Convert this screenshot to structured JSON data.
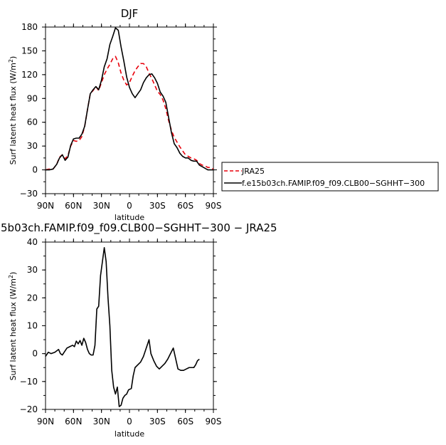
{
  "chart_data": [
    {
      "type": "line",
      "title": "DJF",
      "xlabel": "latitude",
      "ylabel_main": "Surf latent heat flux (W/m",
      "ylabel_sup": "2",
      "ylabel_tail": ")",
      "xlim": [
        90,
        -90
      ],
      "ylim": [
        -30,
        180
      ],
      "x_ticks": [
        90,
        60,
        30,
        0,
        -30,
        -60,
        -90
      ],
      "x_tick_labels": [
        "90N",
        "60N",
        "30N",
        "0",
        "30S",
        "60S",
        "90S"
      ],
      "y_ticks": [
        -30,
        0,
        30,
        60,
        90,
        120,
        150,
        180
      ],
      "y_tick_labels": [
        "−30",
        "0",
        "30",
        "60",
        "90",
        "120",
        "150",
        "180"
      ],
      "legend": {
        "placement": "right",
        "entries": [
          "JRA25",
          "f.e15b03ch.FAMIP.f09_f09.CLB00−SGHHT−300"
        ]
      },
      "series": [
        {
          "name": "JRA25",
          "color": "#e8000b",
          "dash": "dashed",
          "points": [
            [
              90,
              0
            ],
            [
              86,
              1
            ],
            [
              82,
              1
            ],
            [
              78,
              7
            ],
            [
              75,
              16
            ],
            [
              72,
              19
            ],
            [
              69,
              14
            ],
            [
              66,
              18
            ],
            [
              63,
              30
            ],
            [
              60,
              37
            ],
            [
              57,
              36
            ],
            [
              54,
              37
            ],
            [
              51,
              42
            ],
            [
              48,
              55
            ],
            [
              45,
              76
            ],
            [
              42,
              96
            ],
            [
              39,
              100
            ],
            [
              36,
              105
            ],
            [
              33,
              100
            ],
            [
              30,
              110
            ],
            [
              27,
              120
            ],
            [
              24,
              127
            ],
            [
              21,
              133
            ],
            [
              18,
              140
            ],
            [
              15,
              143
            ],
            [
              12,
              135
            ],
            [
              9,
              122
            ],
            [
              6,
              113
            ],
            [
              3,
              107
            ],
            [
              0,
              110
            ],
            [
              -3,
              118
            ],
            [
              -6,
              125
            ],
            [
              -9,
              130
            ],
            [
              -12,
              134
            ],
            [
              -15,
              134
            ],
            [
              -18,
              130
            ],
            [
              -21,
              122
            ],
            [
              -24,
              115
            ],
            [
              -27,
              107
            ],
            [
              -30,
              99
            ],
            [
              -33,
              95
            ],
            [
              -36,
              88
            ],
            [
              -39,
              77
            ],
            [
              -42,
              62
            ],
            [
              -45,
              50
            ],
            [
              -48,
              41
            ],
            [
              -51,
              35
            ],
            [
              -54,
              29
            ],
            [
              -57,
              24
            ],
            [
              -60,
              19
            ],
            [
              -63,
              17
            ],
            [
              -66,
              15
            ],
            [
              -69,
              14
            ],
            [
              -72,
              12
            ],
            [
              -75,
              8
            ],
            [
              -78,
              6
            ],
            [
              -81,
              5
            ],
            [
              -84,
              3
            ],
            [
              -87,
              3
            ],
            [
              -90,
              1
            ]
          ]
        },
        {
          "name": "f.e15b03ch.FAMIP.f09_f09.CLB00−SGHHT−300",
          "color": "#000000",
          "dash": "solid",
          "points": [
            [
              90,
              0
            ],
            [
              86,
              0
            ],
            [
              82,
              1
            ],
            [
              78,
              7
            ],
            [
              75,
              15
            ],
            [
              72,
              19
            ],
            [
              69,
              12
            ],
            [
              66,
              16
            ],
            [
              63,
              31
            ],
            [
              60,
              39
            ],
            [
              57,
              40
            ],
            [
              54,
              40
            ],
            [
              51,
              45
            ],
            [
              48,
              55
            ],
            [
              45,
              76
            ],
            [
              42,
              96
            ],
            [
              39,
              101
            ],
            [
              36,
              105
            ],
            [
              33,
              101
            ],
            [
              30,
              113
            ],
            [
              27,
              130
            ],
            [
              24,
              140
            ],
            [
              21,
              158
            ],
            [
              18,
              168
            ],
            [
              15,
              179
            ],
            [
              12,
              176
            ],
            [
              9,
              155
            ],
            [
              6,
              137
            ],
            [
              3,
              117
            ],
            [
              0,
              104
            ],
            [
              -3,
              96
            ],
            [
              -6,
              91
            ],
            [
              -9,
              96
            ],
            [
              -12,
              101
            ],
            [
              -15,
              110
            ],
            [
              -18,
              116
            ],
            [
              -21,
              120
            ],
            [
              -24,
              121
            ],
            [
              -27,
              116
            ],
            [
              -30,
              109
            ],
            [
              -33,
              98
            ],
            [
              -36,
              93
            ],
            [
              -39,
              85
            ],
            [
              -42,
              66
            ],
            [
              -45,
              47
            ],
            [
              -48,
              33
            ],
            [
              -51,
              28
            ],
            [
              -54,
              21
            ],
            [
              -57,
              17
            ],
            [
              -60,
              15
            ],
            [
              -63,
              15
            ],
            [
              -66,
              12
            ],
            [
              -69,
              11
            ],
            [
              -72,
              11
            ],
            [
              -75,
              6
            ],
            [
              -78,
              4
            ],
            [
              -81,
              2
            ],
            [
              -84,
              0
            ],
            [
              -87,
              0
            ],
            [
              -90,
              0
            ]
          ]
        }
      ]
    },
    {
      "type": "line",
      "title": "5b03ch.FAMIP.f09_f09.CLB00−SGHHT−300 − JRA25",
      "xlabel": "latitude",
      "ylabel_main": "Surf latent heat flux (W/m",
      "ylabel_sup": "2",
      "ylabel_tail": ")",
      "xlim": [
        90,
        -90
      ],
      "ylim": [
        -20,
        40
      ],
      "x_ticks": [
        90,
        60,
        30,
        0,
        -30,
        -60,
        -90
      ],
      "x_tick_labels": [
        "90N",
        "60N",
        "30N",
        "0",
        "30S",
        "60S",
        "90S"
      ],
      "y_ticks": [
        -20,
        -10,
        0,
        10,
        20,
        30,
        40
      ],
      "y_tick_labels": [
        "−20",
        "−10",
        "0",
        "10",
        "20",
        "30",
        "40"
      ],
      "series": [
        {
          "color": "#000000",
          "dash": "solid",
          "points": [
            [
              90,
              -1
            ],
            [
              87,
              0.5
            ],
            [
              84,
              0
            ],
            [
              80,
              0.5
            ],
            [
              76,
              1.5
            ],
            [
              74,
              0
            ],
            [
              72,
              -0.5
            ],
            [
              70,
              0.5
            ],
            [
              67,
              2
            ],
            [
              64,
              2.5
            ],
            [
              61,
              3
            ],
            [
              59,
              2.5
            ],
            [
              57,
              4.5
            ],
            [
              55,
              3.5
            ],
            [
              53,
              4.7
            ],
            [
              51,
              3
            ],
            [
              49,
              5.5
            ],
            [
              47,
              4
            ],
            [
              45,
              1.5
            ],
            [
              43,
              0
            ],
            [
              41,
              -0.5
            ],
            [
              39,
              -0.5
            ],
            [
              37,
              3
            ],
            [
              35,
              16
            ],
            [
              33,
              17
            ],
            [
              31,
              28
            ],
            [
              29,
              33
            ],
            [
              27,
              38
            ],
            [
              25,
              33
            ],
            [
              23,
              20
            ],
            [
              21,
              10
            ],
            [
              19,
              -6
            ],
            [
              17,
              -12
            ],
            [
              15,
              -14.5
            ],
            [
              13,
              -12
            ],
            [
              11,
              -19
            ],
            [
              9,
              -18.5
            ],
            [
              7,
              -16
            ],
            [
              5,
              -15
            ],
            [
              3,
              -14.5
            ],
            [
              1,
              -13
            ],
            [
              -2,
              -12.5
            ],
            [
              -4,
              -8
            ],
            [
              -6,
              -5
            ],
            [
              -9,
              -4
            ],
            [
              -12,
              -3
            ],
            [
              -15,
              -1
            ],
            [
              -18,
              2
            ],
            [
              -21,
              5
            ],
            [
              -23,
              0
            ],
            [
              -26,
              -2.5
            ],
            [
              -29,
              -4.5
            ],
            [
              -32,
              -5.5
            ],
            [
              -35,
              -4.5
            ],
            [
              -38,
              -3.5
            ],
            [
              -41,
              -2
            ],
            [
              -44,
              0
            ],
            [
              -47,
              2
            ],
            [
              -49,
              -1
            ],
            [
              -52,
              -5.5
            ],
            [
              -55,
              -6
            ],
            [
              -58,
              -6
            ],
            [
              -61,
              -5.5
            ],
            [
              -64,
              -5
            ],
            [
              -67,
              -5
            ],
            [
              -69,
              -5
            ],
            [
              -71,
              -4
            ],
            [
              -73,
              -2.5
            ],
            [
              -75,
              -2
            ]
          ]
        }
      ]
    }
  ]
}
